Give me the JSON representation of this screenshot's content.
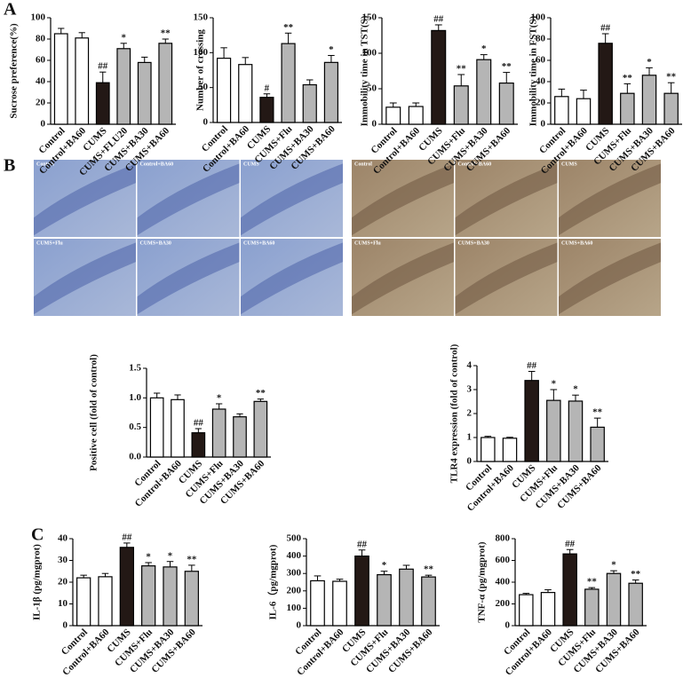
{
  "panel_labels": [
    "A",
    "B",
    "C"
  ],
  "micrographs": {
    "left": [
      "Control",
      "Control+BA60",
      "CUMS",
      "CUMS+Flu",
      "CUMS+BA30",
      "CUMS+BA60"
    ],
    "right": [
      "Control",
      "Control+BA60",
      "CUMS",
      "CUMS+Flu",
      "CUMS+BA30",
      "CUMS+BA60"
    ]
  },
  "chart_data": [
    {
      "type": "bar",
      "y_label": "Sucrose preference(%)",
      "categories": [
        "Control",
        "Control+BA60",
        "CUMS",
        "CUMS+FLU20",
        "CUMS+BA30",
        "CUMS+BA60"
      ],
      "values": [
        85,
        81,
        39,
        71,
        58,
        76
      ],
      "errors": [
        5,
        5,
        10,
        5,
        5,
        4
      ],
      "annotations": [
        null,
        null,
        "##",
        "*",
        null,
        "**"
      ],
      "bar_colors": [
        "#ffffff",
        "#ffffff",
        "#231815",
        "#b5b5b5",
        "#b5b5b5",
        "#b5b5b5"
      ],
      "ylim": [
        0,
        100
      ],
      "yticks": [
        0,
        20,
        40,
        60,
        80,
        100
      ]
    },
    {
      "type": "bar",
      "y_label": "Number of crossing",
      "categories": [
        "Control",
        "Control+BA60",
        "CUMS",
        "CUMS+Flu",
        "CUMS+BA30",
        "CUMS+BA60"
      ],
      "values": [
        92,
        83,
        36,
        113,
        54,
        86
      ],
      "errors": [
        15,
        10,
        5,
        15,
        7,
        10
      ],
      "annotations": [
        null,
        null,
        "#",
        "**",
        null,
        "*"
      ],
      "bar_colors": [
        "#ffffff",
        "#ffffff",
        "#231815",
        "#b5b5b5",
        "#b5b5b5",
        "#b5b5b5"
      ],
      "ylim": [
        0,
        150
      ],
      "yticks": [
        0,
        50,
        100,
        150
      ]
    },
    {
      "type": "bar",
      "y_label": "Immobility time in TST(S)",
      "categories": [
        "Control",
        "Control+BA60",
        "CUMS",
        "CUMS+Flu",
        "CUMS+BA30",
        "CUMS+BA60"
      ],
      "values": [
        24,
        25,
        132,
        54,
        91,
        58
      ],
      "errors": [
        6,
        5,
        8,
        16,
        7,
        15
      ],
      "annotations": [
        null,
        null,
        "##",
        "**",
        "*",
        "**"
      ],
      "bar_colors": [
        "#ffffff",
        "#ffffff",
        "#231815",
        "#b5b5b5",
        "#b5b5b5",
        "#b5b5b5"
      ],
      "ylim": [
        0,
        150
      ],
      "yticks": [
        0,
        50,
        100,
        150
      ]
    },
    {
      "type": "bar",
      "y_label": "Immobility time in FST(S)",
      "categories": [
        "Control",
        "Control+BA60",
        "CUMS",
        "CUMS+Flu",
        "CUMS+BA30",
        "CUMS+BA60"
      ],
      "values": [
        26,
        24,
        76,
        29,
        46,
        29
      ],
      "errors": [
        7,
        8,
        9,
        9,
        7,
        10
      ],
      "annotations": [
        null,
        null,
        "##",
        "**",
        "*",
        "**"
      ],
      "bar_colors": [
        "#ffffff",
        "#ffffff",
        "#231815",
        "#b5b5b5",
        "#b5b5b5",
        "#b5b5b5"
      ],
      "ylim": [
        0,
        100
      ],
      "yticks": [
        0,
        20,
        40,
        60,
        80,
        100
      ]
    },
    {
      "type": "bar",
      "y_label": "Positive cell  (fold of control)",
      "categories": [
        "Control",
        "Control+BA60",
        "CUMS",
        "CUMS+Flu",
        "CUMS+BA30",
        "CUMS+BA60"
      ],
      "values": [
        1.0,
        0.97,
        0.41,
        0.81,
        0.68,
        0.94
      ],
      "errors": [
        0.08,
        0.08,
        0.07,
        0.09,
        0.05,
        0.04
      ],
      "annotations": [
        null,
        null,
        "##",
        "*",
        null,
        "**"
      ],
      "bar_colors": [
        "#ffffff",
        "#ffffff",
        "#231815",
        "#b5b5b5",
        "#b5b5b5",
        "#b5b5b5"
      ],
      "ylim": [
        0,
        1.5
      ],
      "yticks": [
        {
          "value": 0,
          "label": "0.0"
        },
        {
          "value": 0.5,
          "label": "0.5"
        },
        {
          "value": 1,
          "label": "1.0"
        },
        {
          "value": 1.5,
          "label": "1.5"
        }
      ]
    },
    {
      "type": "bar",
      "y_label": "TLR4 expression (fold of control)",
      "categories": [
        "Control",
        "Control+BA60",
        "CUMS",
        "CUMS+Flu",
        "CUMS+BA30",
        "CUMS+BA60"
      ],
      "values": [
        1.0,
        0.97,
        3.38,
        2.55,
        2.52,
        1.43
      ],
      "errors": [
        0.05,
        0.04,
        0.38,
        0.45,
        0.25,
        0.38
      ],
      "annotations": [
        null,
        null,
        "##",
        "*",
        "*",
        "**"
      ],
      "bar_colors": [
        "#ffffff",
        "#ffffff",
        "#231815",
        "#b5b5b5",
        "#b5b5b5",
        "#b5b5b5"
      ],
      "ylim": [
        0,
        4
      ],
      "yticks": [
        0,
        1,
        2,
        3,
        4
      ]
    },
    {
      "type": "bar",
      "y_label": "IL-1β  (pg/mgprot)",
      "categories": [
        "Control",
        "Control+BA60",
        "CUMS",
        "CUMS+Flu",
        "CUMS+BA30",
        "CUMS+BA60"
      ],
      "values": [
        22,
        22.5,
        36,
        27.5,
        27,
        25
      ],
      "errors": [
        1.2,
        1.5,
        2,
        1.5,
        2.5,
        2.8
      ],
      "annotations": [
        null,
        null,
        "##",
        "*",
        "*",
        "**"
      ],
      "bar_colors": [
        "#ffffff",
        "#ffffff",
        "#231815",
        "#b5b5b5",
        "#b5b5b5",
        "#b5b5b5"
      ],
      "ylim": [
        0,
        40
      ],
      "yticks": [
        0,
        10,
        20,
        30,
        40
      ]
    },
    {
      "type": "bar",
      "y_label": "IL-6（pg/mgprot)",
      "categories": [
        "Control",
        "Control+BA60",
        "CUMS",
        "CUMS+Flu",
        "CUMS+BA30",
        "CUMS+BA60"
      ],
      "values": [
        258,
        255,
        400,
        293,
        325,
        280
      ],
      "errors": [
        28,
        12,
        35,
        20,
        22,
        10
      ],
      "annotations": [
        null,
        null,
        "##",
        "*",
        null,
        "**"
      ],
      "bar_colors": [
        "#ffffff",
        "#ffffff",
        "#231815",
        "#b5b5b5",
        "#b5b5b5",
        "#b5b5b5"
      ],
      "ylim": [
        0,
        500
      ],
      "yticks": [
        0,
        100,
        200,
        300,
        400,
        500
      ]
    },
    {
      "type": "bar",
      "y_label": "TNF-α  (pg/mgprot)",
      "categories": [
        "Control",
        "Control+BA60",
        "CUMS",
        "CUMS+Flu",
        "CUMS+BA30",
        "CUMS+BA60"
      ],
      "values": [
        285,
        305,
        660,
        335,
        480,
        390
      ],
      "errors": [
        12,
        25,
        40,
        15,
        25,
        30
      ],
      "annotations": [
        null,
        null,
        "##",
        "**",
        "*",
        "**"
      ],
      "bar_colors": [
        "#ffffff",
        "#ffffff",
        "#231815",
        "#b5b5b5",
        "#b5b5b5",
        "#b5b5b5"
      ],
      "ylim": [
        0,
        800
      ],
      "yticks": [
        0,
        200,
        400,
        600,
        800
      ]
    }
  ]
}
